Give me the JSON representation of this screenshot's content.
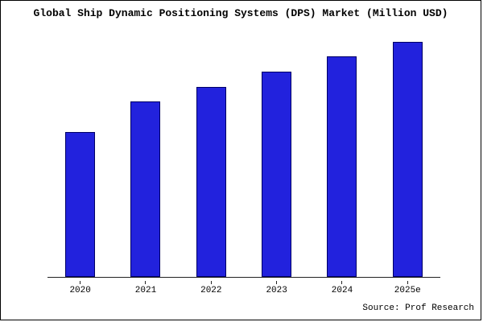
{
  "title": "Global Ship Dynamic Positioning Systems (DPS) Market (Million USD)",
  "source": "Source: Prof Research",
  "colors": {
    "bar_fill": "#2222dd",
    "bar_border": "#000066",
    "axis": "#222222",
    "background": "#ffffff",
    "text": "#000000"
  },
  "chart_data": {
    "type": "bar",
    "categories": [
      "2020",
      "2021",
      "2022",
      "2023",
      "2024",
      "2025e"
    ],
    "values": [
      58,
      70,
      76,
      82,
      88,
      94
    ],
    "title": "Global Ship Dynamic Positioning Systems (DPS) Market (Million USD)",
    "xlabel": "",
    "ylabel": "",
    "ylim": [
      0,
      100
    ],
    "value_unit": "relative-percent-of-plot-height (no y-axis labels shown)",
    "legend": false,
    "grid": false,
    "annotation": "Source: Prof Research"
  }
}
